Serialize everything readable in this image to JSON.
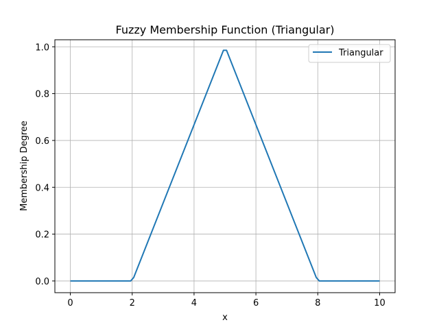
{
  "chart_data": {
    "type": "line",
    "title": "Fuzzy Membership Function (Triangular)",
    "xlabel": "x",
    "ylabel": "Membership Degree",
    "xlim": [
      -0.5,
      10.5
    ],
    "ylim": [
      -0.05,
      1.03
    ],
    "x_ticks": [
      "0",
      "2",
      "4",
      "6",
      "8",
      "10"
    ],
    "x_tick_values": [
      0,
      2,
      4,
      6,
      8,
      10
    ],
    "y_ticks": [
      "0.0",
      "0.2",
      "0.4",
      "0.6",
      "0.8",
      "1.0"
    ],
    "y_tick_values": [
      0.0,
      0.2,
      0.4,
      0.6,
      0.8,
      1.0
    ],
    "grid": true,
    "legend_position": "top-right",
    "series": [
      {
        "name": "Triangular",
        "color": "#1f77b4",
        "x": [
          0,
          1.95,
          2.05,
          4.95,
          5.05,
          7.95,
          8.05,
          10
        ],
        "y": [
          0,
          0,
          0.015,
          0.985,
          0.985,
          0.015,
          0,
          0
        ]
      }
    ]
  }
}
